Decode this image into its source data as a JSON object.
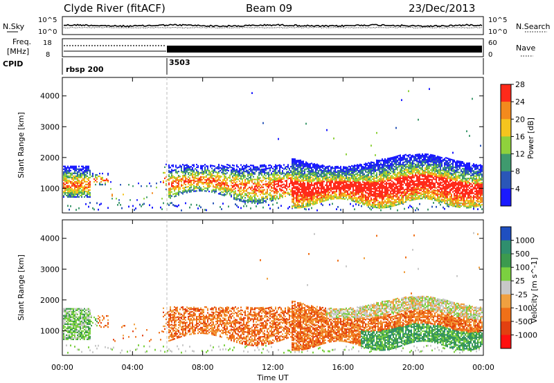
{
  "header": {
    "station": "Clyde River (fitACF)",
    "beam": "Beam 09",
    "date": "23/Dec/2013"
  },
  "nsky_panel": {
    "left_label": "N.Sky",
    "right_label": "N.Search",
    "y_ticks": [
      "10^5",
      "10^0"
    ],
    "right_ticks": [
      "10^5",
      "10^0"
    ]
  },
  "freq_panel": {
    "left_label_line1": "Freq.",
    "left_label_line2": "[MHz]",
    "left_ticks": [
      "18",
      "8"
    ],
    "right_label": "Nave",
    "right_ticks": [
      "60",
      "0"
    ]
  },
  "cpid_panel": {
    "label": "CPID",
    "segments": [
      {
        "label": "rbsp 200",
        "start_hour": 0
      },
      {
        "label": "3503",
        "start_hour": 6
      }
    ]
  },
  "chart_data": [
    {
      "type": "heatmap",
      "name": "power",
      "ylabel": "Slant Range [km]",
      "ylim": [
        200,
        4600
      ],
      "y_ticks": [
        "1000",
        "2000",
        "3000",
        "4000"
      ],
      "colorbar_label": "Power [dB]",
      "colorbar_ticks": [
        "4",
        "8",
        "12",
        "16",
        "20",
        "24",
        "28"
      ],
      "colors": [
        "#1a1aff",
        "#2a56b8",
        "#3f9a6e",
        "#8fd13c",
        "#f5c51e",
        "#f38a1d",
        "#ff2a1a"
      ]
    },
    {
      "type": "heatmap",
      "name": "velocity",
      "ylabel": "Slant Range [km]",
      "ylim": [
        200,
        4600
      ],
      "y_ticks": [
        "1000",
        "2000",
        "3000",
        "4000"
      ],
      "colorbar_label": "Velocity [m s^-1]",
      "colorbar_ticks": [
        "1000",
        "500",
        "100",
        "25",
        "-25",
        "-100",
        "-500",
        "-1000"
      ],
      "colors": [
        "#1f4fc0",
        "#2f8f6e",
        "#3c9a4e",
        "#7bd040",
        "#c8c8c8",
        "#f0a040",
        "#f07018",
        "#e24010",
        "#ff1010"
      ]
    }
  ],
  "x_axis": {
    "label": "Time UT",
    "ticks": [
      "00:00",
      "04:00",
      "08:00",
      "12:00",
      "16:00",
      "20:00",
      "00:00"
    ]
  }
}
